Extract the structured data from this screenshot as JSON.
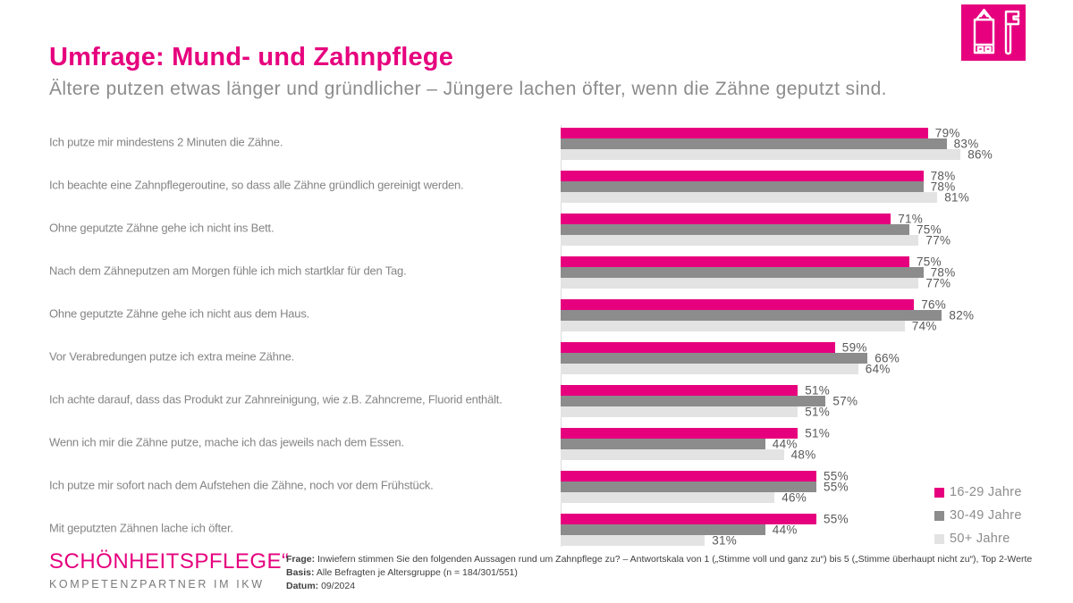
{
  "header": {
    "title": "Umfrage: Mund- und Zahnpflege",
    "subtitle": "Ältere putzen etwas länger und gründlicher – Jüngere lachen öfter, wenn die Zähne geputzt sind.",
    "icon": "toothpaste-and-toothbrush-icon"
  },
  "colors": {
    "accent": "#E6007E",
    "series_16_29": "#E6007E",
    "series_30_49": "#8C8C8C",
    "series_50_plus": "#E3E3E3",
    "statement_text": "#848484",
    "value_text": "#595959"
  },
  "chart_data": {
    "type": "bar",
    "orientation": "horizontal",
    "unit": "%",
    "xlim": [
      0,
      100
    ],
    "grid": false,
    "legend_position": "bottom-right",
    "categories": [
      "Ich putze mir mindestens 2 Minuten die Zähne.",
      "Ich beachte eine Zahnpflegeroutine, so dass alle Zähne gründlich gereinigt werden.",
      "Ohne geputzte Zähne gehe ich nicht ins Bett.",
      "Nach dem Zähneputzen am Morgen fühle ich mich startklar für den Tag.",
      "Ohne geputzte Zähne gehe ich nicht aus dem Haus.",
      "Vor Verabredungen putze ich extra meine Zähne.",
      "Ich achte darauf, dass das Produkt zur Zahnreinigung, wie z.B. Zahncreme, Fluorid enthält.",
      "Wenn ich mir die Zähne putze, mache ich das jeweils nach dem Essen.",
      "Ich putze mir sofort nach dem Aufstehen die Zähne, noch vor dem Frühstück.",
      "Mit geputzten Zähnen lache ich öfter."
    ],
    "series": [
      {
        "name": "16-29 Jahre",
        "color": "#E6007E",
        "values": [
          79,
          78,
          71,
          75,
          76,
          59,
          51,
          51,
          55,
          55
        ]
      },
      {
        "name": "30-49 Jahre",
        "color": "#8C8C8C",
        "values": [
          83,
          78,
          75,
          78,
          82,
          66,
          57,
          44,
          55,
          44
        ]
      },
      {
        "name": "50+ Jahre",
        "color": "#E3E3E3",
        "values": [
          86,
          81,
          77,
          77,
          74,
          64,
          51,
          48,
          46,
          31
        ]
      }
    ]
  },
  "footer": {
    "logo_line1": "SCHÖNHEITSPFLEGE“",
    "logo_line2": "KOMPETENZPARTNER IM IKW",
    "notes": [
      {
        "label": "Frage:",
        "text": "Inwiefern stimmen Sie den folgenden Aussagen rund um Zahnpflege zu? – Antwortskala von 1 („Stimme voll und ganz zu“) bis 5 („Stimme überhaupt nicht zu“), Top 2-Werte"
      },
      {
        "label": "Basis:",
        "text": "Alle Befragten je Altersgruppe (n = 184/301/551)"
      },
      {
        "label": "Datum:",
        "text": "09/2024"
      }
    ]
  }
}
